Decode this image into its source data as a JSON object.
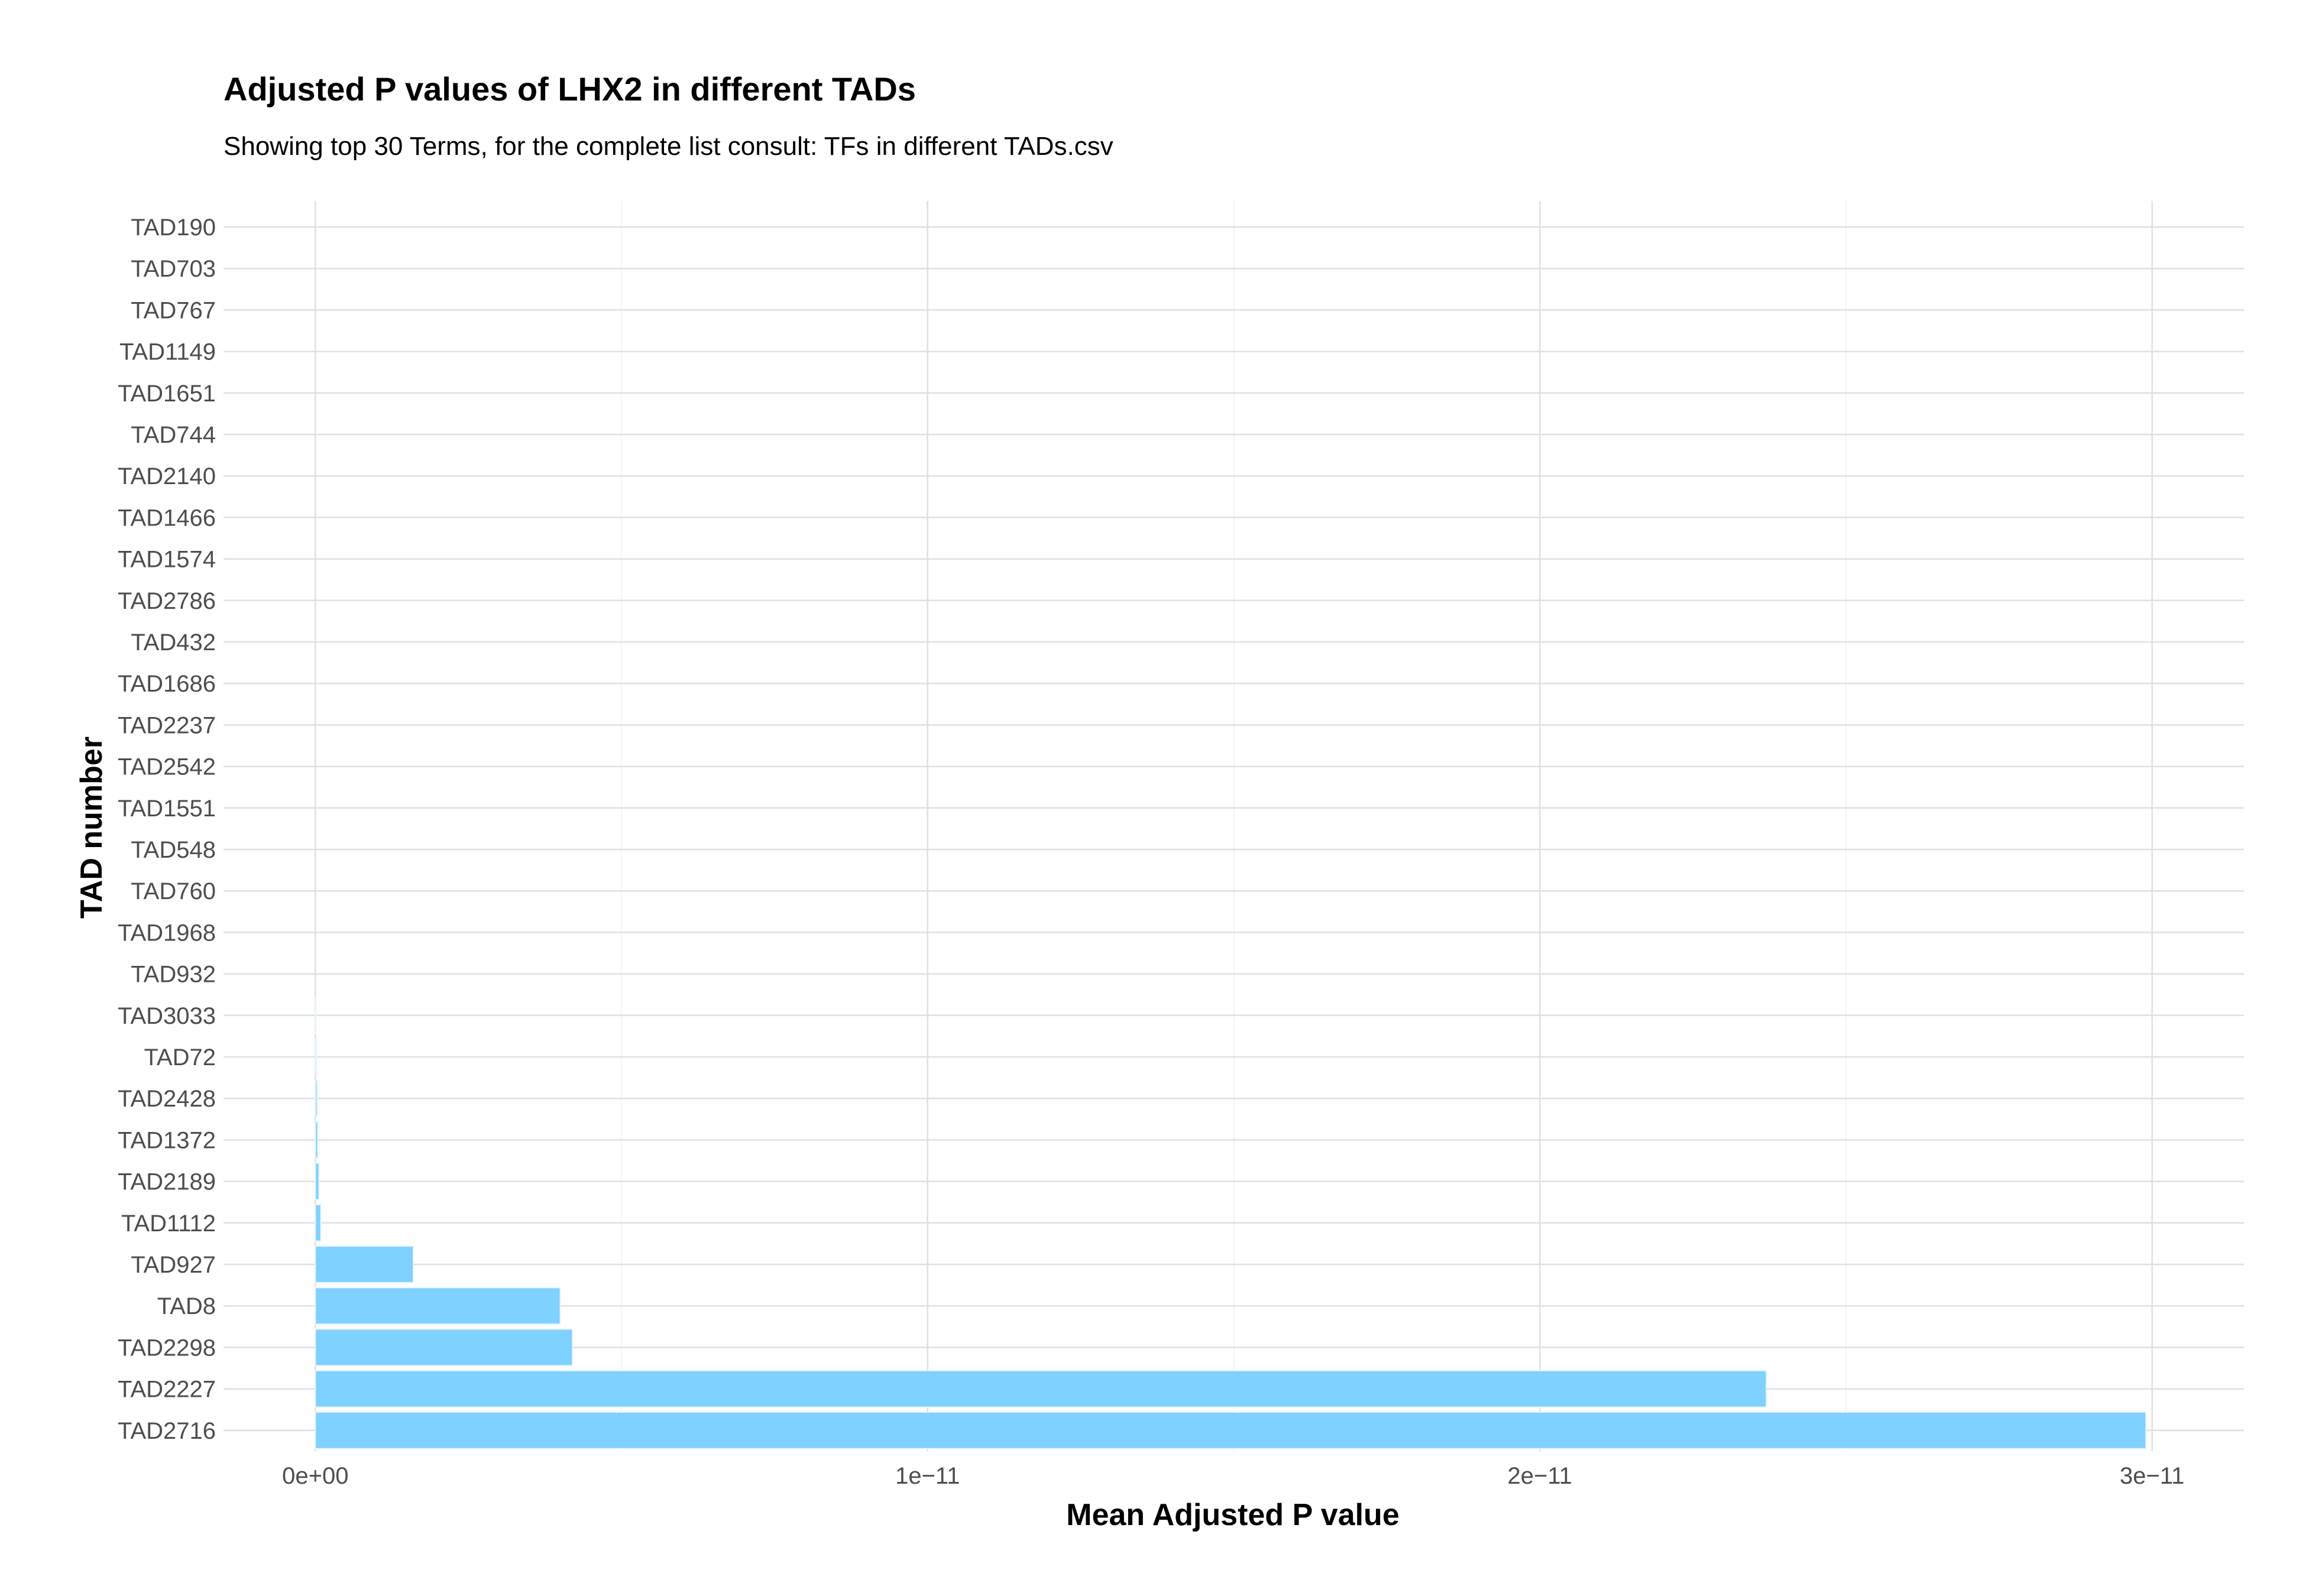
{
  "chart_data": {
    "type": "bar",
    "orientation": "horizontal",
    "title": "Adjusted P values of LHX2 in different TADs",
    "subtitle": "Showing top 30 Terms, for the complete list consult: TFs in different TADs.csv",
    "xlabel": "Mean Adjusted P value",
    "ylabel": "TAD number",
    "xlim": [
      -1.5e-12,
      3.15e-11
    ],
    "x_ticks": [
      0,
      1e-11,
      2e-11,
      3e-11
    ],
    "x_tick_labels": [
      "0e+00",
      "1e−11",
      "2e−11",
      "3e−11"
    ],
    "grid": true,
    "bar_color": "#7fd1ff",
    "categories": [
      "TAD190",
      "TAD703",
      "TAD767",
      "TAD1149",
      "TAD1651",
      "TAD744",
      "TAD2140",
      "TAD1466",
      "TAD1574",
      "TAD2786",
      "TAD432",
      "TAD1686",
      "TAD2237",
      "TAD2542",
      "TAD1551",
      "TAD548",
      "TAD760",
      "TAD1968",
      "TAD932",
      "TAD3033",
      "TAD72",
      "TAD2428",
      "TAD1372",
      "TAD2189",
      "TAD1112",
      "TAD927",
      "TAD8",
      "TAD2298",
      "TAD2227",
      "TAD2716"
    ],
    "values": [
      0,
      0,
      0,
      0,
      0,
      0,
      0,
      0,
      0,
      0,
      0,
      0,
      0,
      0,
      0,
      0,
      0,
      0,
      0,
      1e-14,
      2e-14,
      3e-14,
      4e-14,
      6e-14,
      9e-14,
      1.6e-12,
      4e-12,
      4.2e-12,
      2.37e-11,
      2.99e-11
    ]
  }
}
